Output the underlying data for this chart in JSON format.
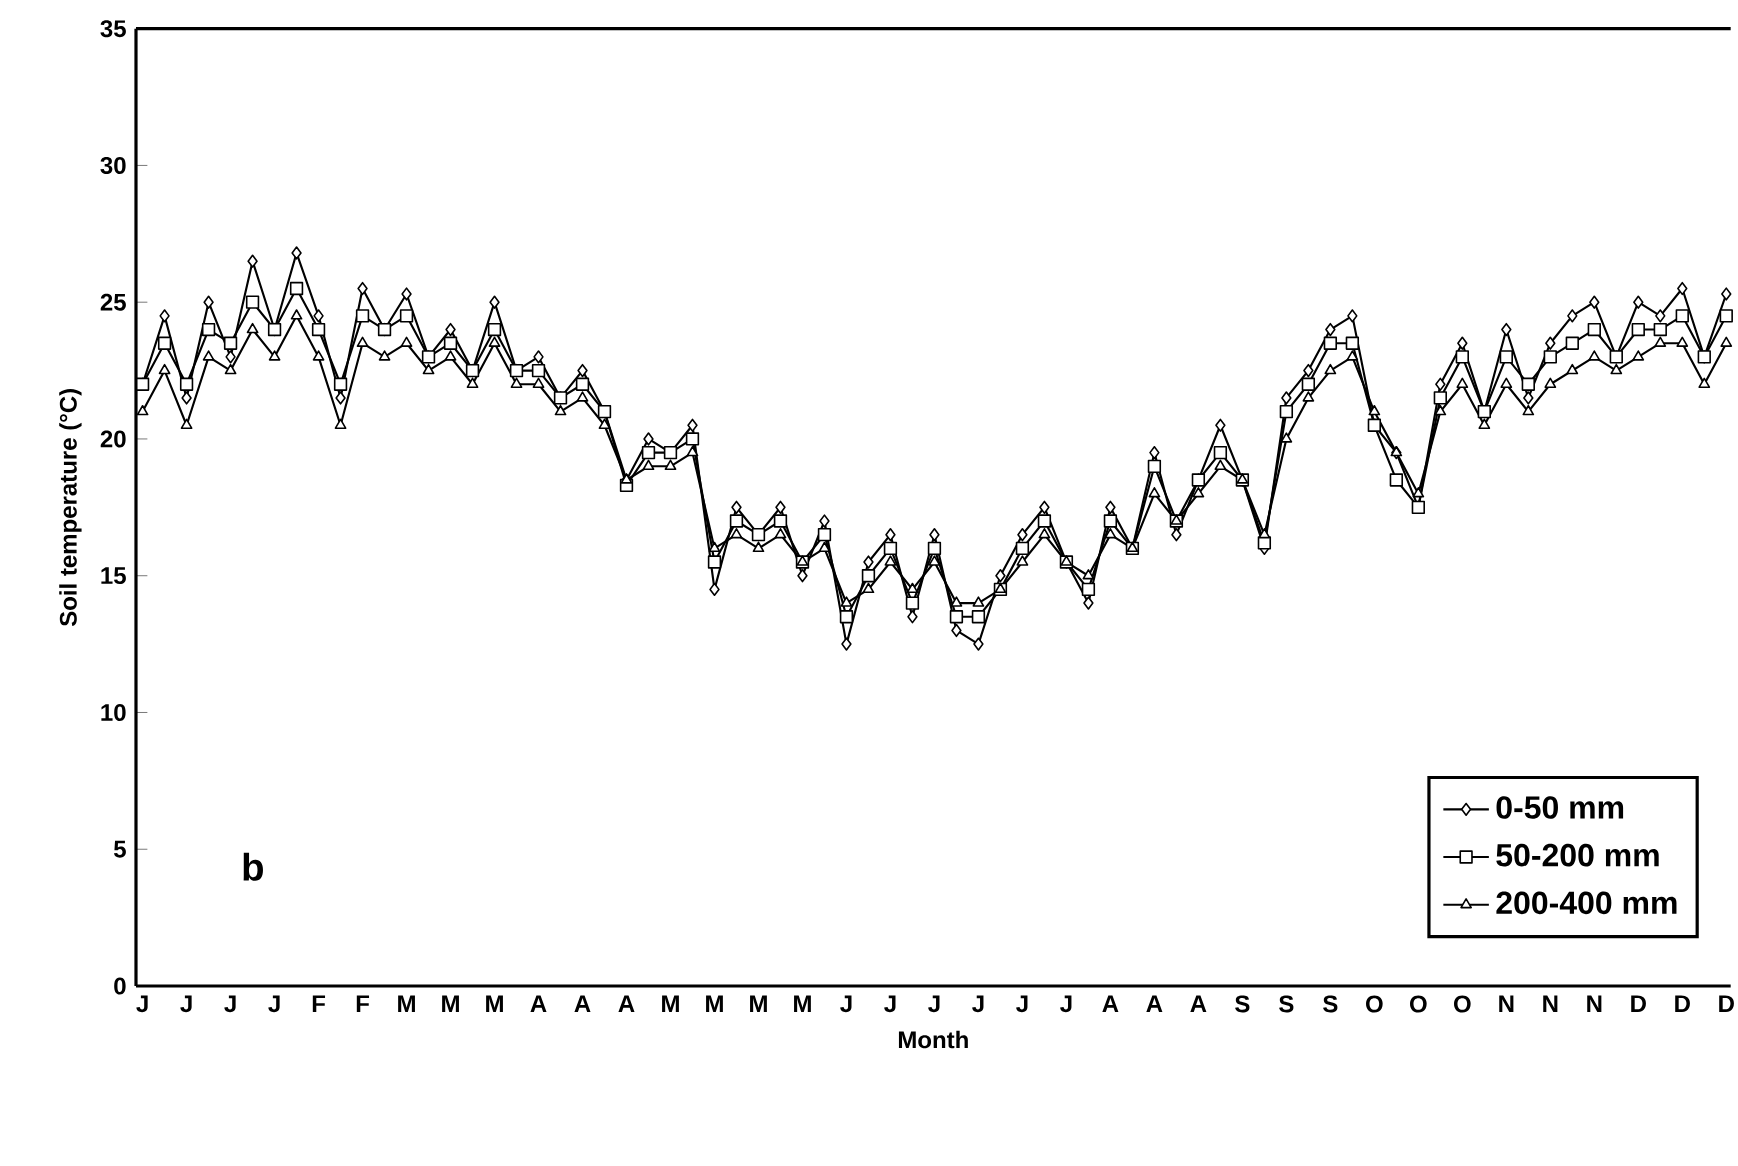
{
  "chart_data": {
    "type": "line",
    "xlabel": "Month",
    "ylabel": "Soil temperature (°C)",
    "categories": [
      "J",
      null,
      "J",
      null,
      "J",
      null,
      "J",
      null,
      "F",
      null,
      "F",
      null,
      "M",
      null,
      "M",
      null,
      "M",
      null,
      "A",
      null,
      "A",
      null,
      "A",
      null,
      "M",
      null,
      "M",
      null,
      "M",
      null,
      "M",
      null,
      "J",
      null,
      "J",
      null,
      "J",
      null,
      "J",
      null,
      "J",
      null,
      "J",
      null,
      "A",
      null,
      "A",
      null,
      "A",
      null,
      "S",
      null,
      "S",
      null,
      "S",
      null,
      "O",
      null,
      "O",
      null,
      "O",
      null,
      "N",
      null,
      "N",
      null,
      "N",
      null,
      "D",
      null,
      "D",
      null,
      "D"
    ],
    "ylim": [
      0,
      35
    ],
    "yticks": [
      0,
      5,
      10,
      15,
      20,
      25,
      30,
      35
    ],
    "grid": false,
    "legend": "bottom right",
    "line_style": "solid",
    "annotations": [
      "b"
    ],
    "series": [
      {
        "name": "0-50 mm",
        "color": "#000000",
        "marker": "diamond",
        "values": [
          22,
          24.5,
          21.5,
          25,
          23,
          26.5,
          24,
          26.8,
          24.5,
          21.5,
          25.5,
          24,
          25.3,
          23,
          24,
          22.5,
          25,
          22.5,
          23,
          21.5,
          22.5,
          21,
          18.5,
          20,
          19.5,
          20.5,
          14.5,
          17.5,
          16.5,
          17.5,
          15,
          17,
          12.5,
          15.5,
          16.5,
          13.5,
          16.5,
          13,
          12.5,
          15,
          16.5,
          17.5,
          15.5,
          14,
          17.5,
          16,
          19.5,
          16.5,
          18.5,
          20.5,
          18.5,
          16,
          21.5,
          22.5,
          24,
          24.5,
          20.5,
          19.5,
          17.5,
          22,
          23.5,
          21,
          24,
          21.5,
          23.5,
          24.5,
          25,
          23,
          25,
          24.5,
          25.5,
          23,
          25.3
        ]
      },
      {
        "name": "50-200 mm",
        "color": "#000000",
        "marker": "square",
        "values": [
          22,
          23.5,
          22,
          24,
          23.5,
          25,
          24,
          25.5,
          24,
          22,
          24.5,
          24,
          24.5,
          23,
          23.5,
          22.5,
          24,
          22.5,
          22.5,
          21.5,
          22,
          21,
          18.3,
          19.5,
          19.5,
          20,
          15.5,
          17,
          16.5,
          17,
          15.5,
          16.5,
          13.5,
          15,
          16,
          14,
          16,
          13.5,
          13.5,
          14.5,
          16,
          17,
          15.5,
          14.5,
          17,
          16,
          19,
          17,
          18.5,
          19.5,
          18.5,
          16.2,
          21,
          22,
          23.5,
          23.5,
          20.5,
          18.5,
          17.5,
          21.5,
          23,
          21,
          23,
          22,
          23,
          23.5,
          24,
          23,
          24,
          24,
          24.5,
          23,
          24.5
        ]
      },
      {
        "name": "200-400 mm",
        "color": "#000000",
        "marker": "triangle",
        "values": [
          21,
          22.5,
          20.5,
          23,
          22.5,
          24,
          23,
          24.5,
          23,
          20.5,
          23.5,
          23,
          23.5,
          22.5,
          23,
          22,
          23.5,
          22,
          22,
          21,
          21.5,
          20.5,
          18.5,
          19,
          19,
          19.5,
          16,
          16.5,
          16,
          16.5,
          15.5,
          16,
          14,
          14.5,
          15.5,
          14.5,
          15.5,
          14,
          14,
          14.5,
          15.5,
          16.5,
          15.5,
          15,
          16.5,
          16,
          18,
          17,
          18,
          19,
          18.5,
          16.5,
          20,
          21.5,
          22.5,
          23,
          21,
          19.5,
          18,
          21,
          22,
          20.5,
          22,
          21,
          22,
          22.5,
          23,
          22.5,
          23,
          23.5,
          23.5,
          22,
          23.5
        ]
      }
    ]
  }
}
